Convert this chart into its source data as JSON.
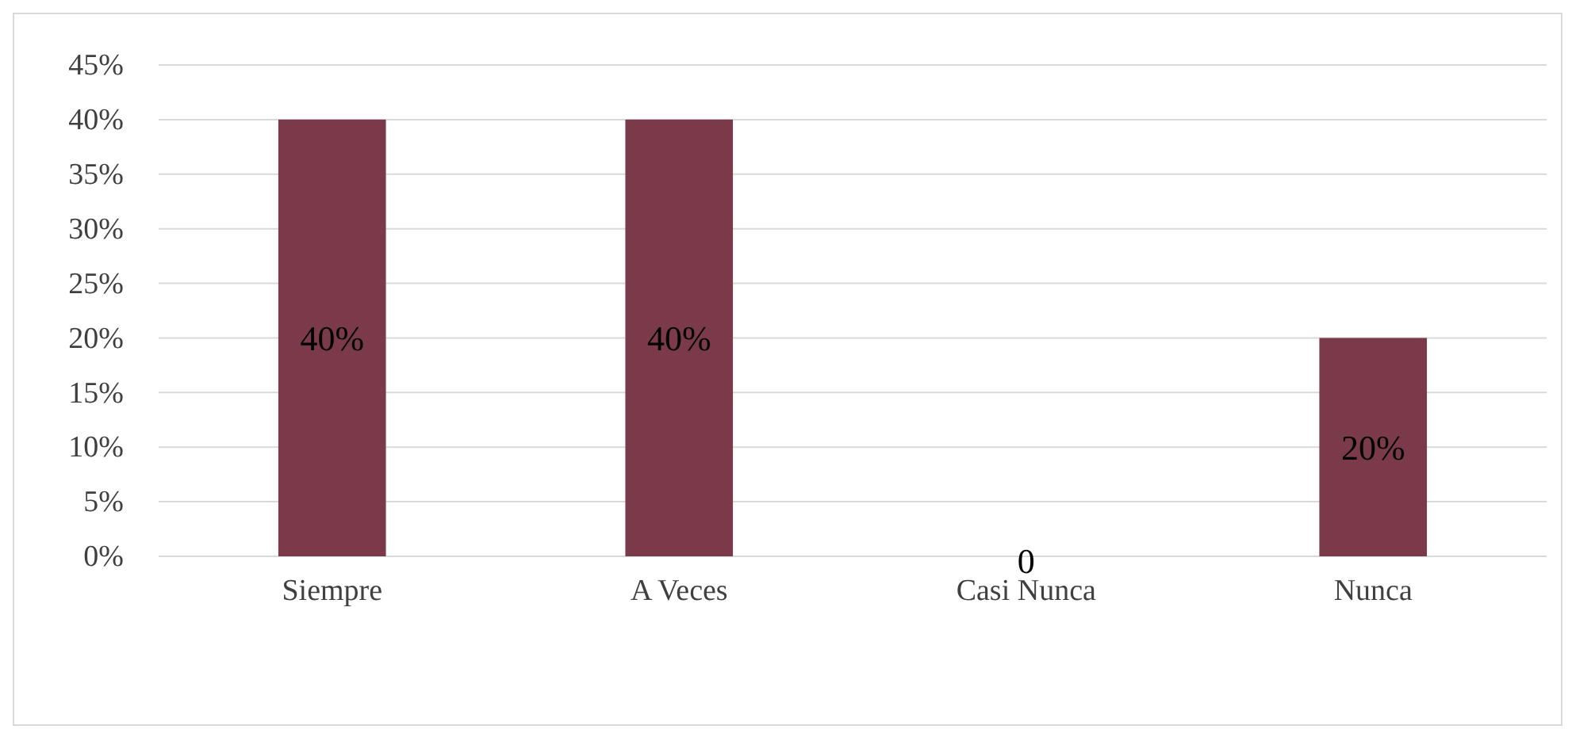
{
  "chart_data": {
    "type": "bar",
    "categories": [
      "Siempre",
      "A Veces",
      "Casi Nunca",
      "Nunca"
    ],
    "values": [
      40,
      40,
      0,
      20
    ],
    "color": "#7b3a4a",
    "value_labels": [
      "40%",
      "40%",
      "0",
      "20%"
    ],
    "ylim": [
      0,
      45
    ],
    "yticks": [
      {
        "value": 0,
        "label": "0%"
      },
      {
        "value": 5,
        "label": "5%"
      },
      {
        "value": 10,
        "label": "10%"
      },
      {
        "value": 15,
        "label": "15%"
      },
      {
        "value": 20,
        "label": "20%"
      },
      {
        "value": 25,
        "label": "25%"
      },
      {
        "value": 30,
        "label": "30%"
      },
      {
        "value": 35,
        "label": "35%"
      },
      {
        "value": 40,
        "label": "40%"
      },
      {
        "value": 45,
        "label": "45%"
      }
    ],
    "grid": "y"
  }
}
